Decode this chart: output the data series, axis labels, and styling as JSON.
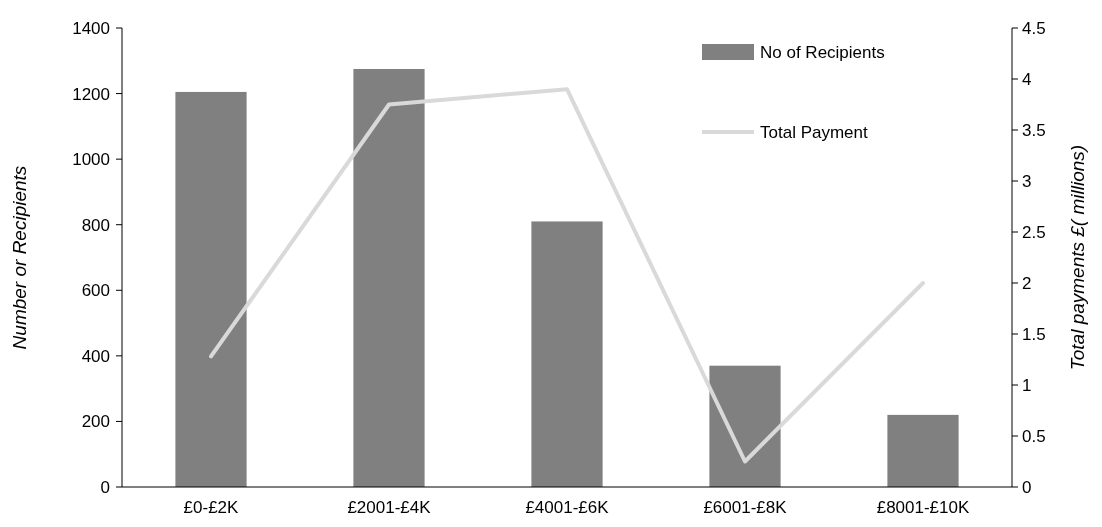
{
  "chart_data": {
    "type": "bar",
    "categories": [
      "£0-£2K",
      "£2001-£4K",
      "£4001-£6K",
      "£6001-£8K",
      "£8001-£10K"
    ],
    "ylabel": "Number or Recipients",
    "y2label": "Total payments £( millions)",
    "series": [
      {
        "name": "No of Recipients",
        "color": "#808080",
        "values": [
          1205,
          1275,
          810,
          370,
          220
        ]
      },
      {
        "name": "Total Payment",
        "type": "line",
        "axis": "y2",
        "color": "#d9d9d9",
        "values": [
          1.28,
          3.75,
          3.9,
          0.25,
          2.0
        ]
      }
    ],
    "ylim": [
      0,
      1400
    ],
    "yticks": [
      0,
      200,
      400,
      600,
      800,
      1000,
      1200,
      1400
    ],
    "y2lim": [
      0,
      4.5
    ],
    "y2ticks": [
      0,
      0.5,
      1,
      1.5,
      2,
      2.5,
      3,
      3.5,
      4,
      4.5
    ],
    "legend": "top right",
    "grid": false
  }
}
